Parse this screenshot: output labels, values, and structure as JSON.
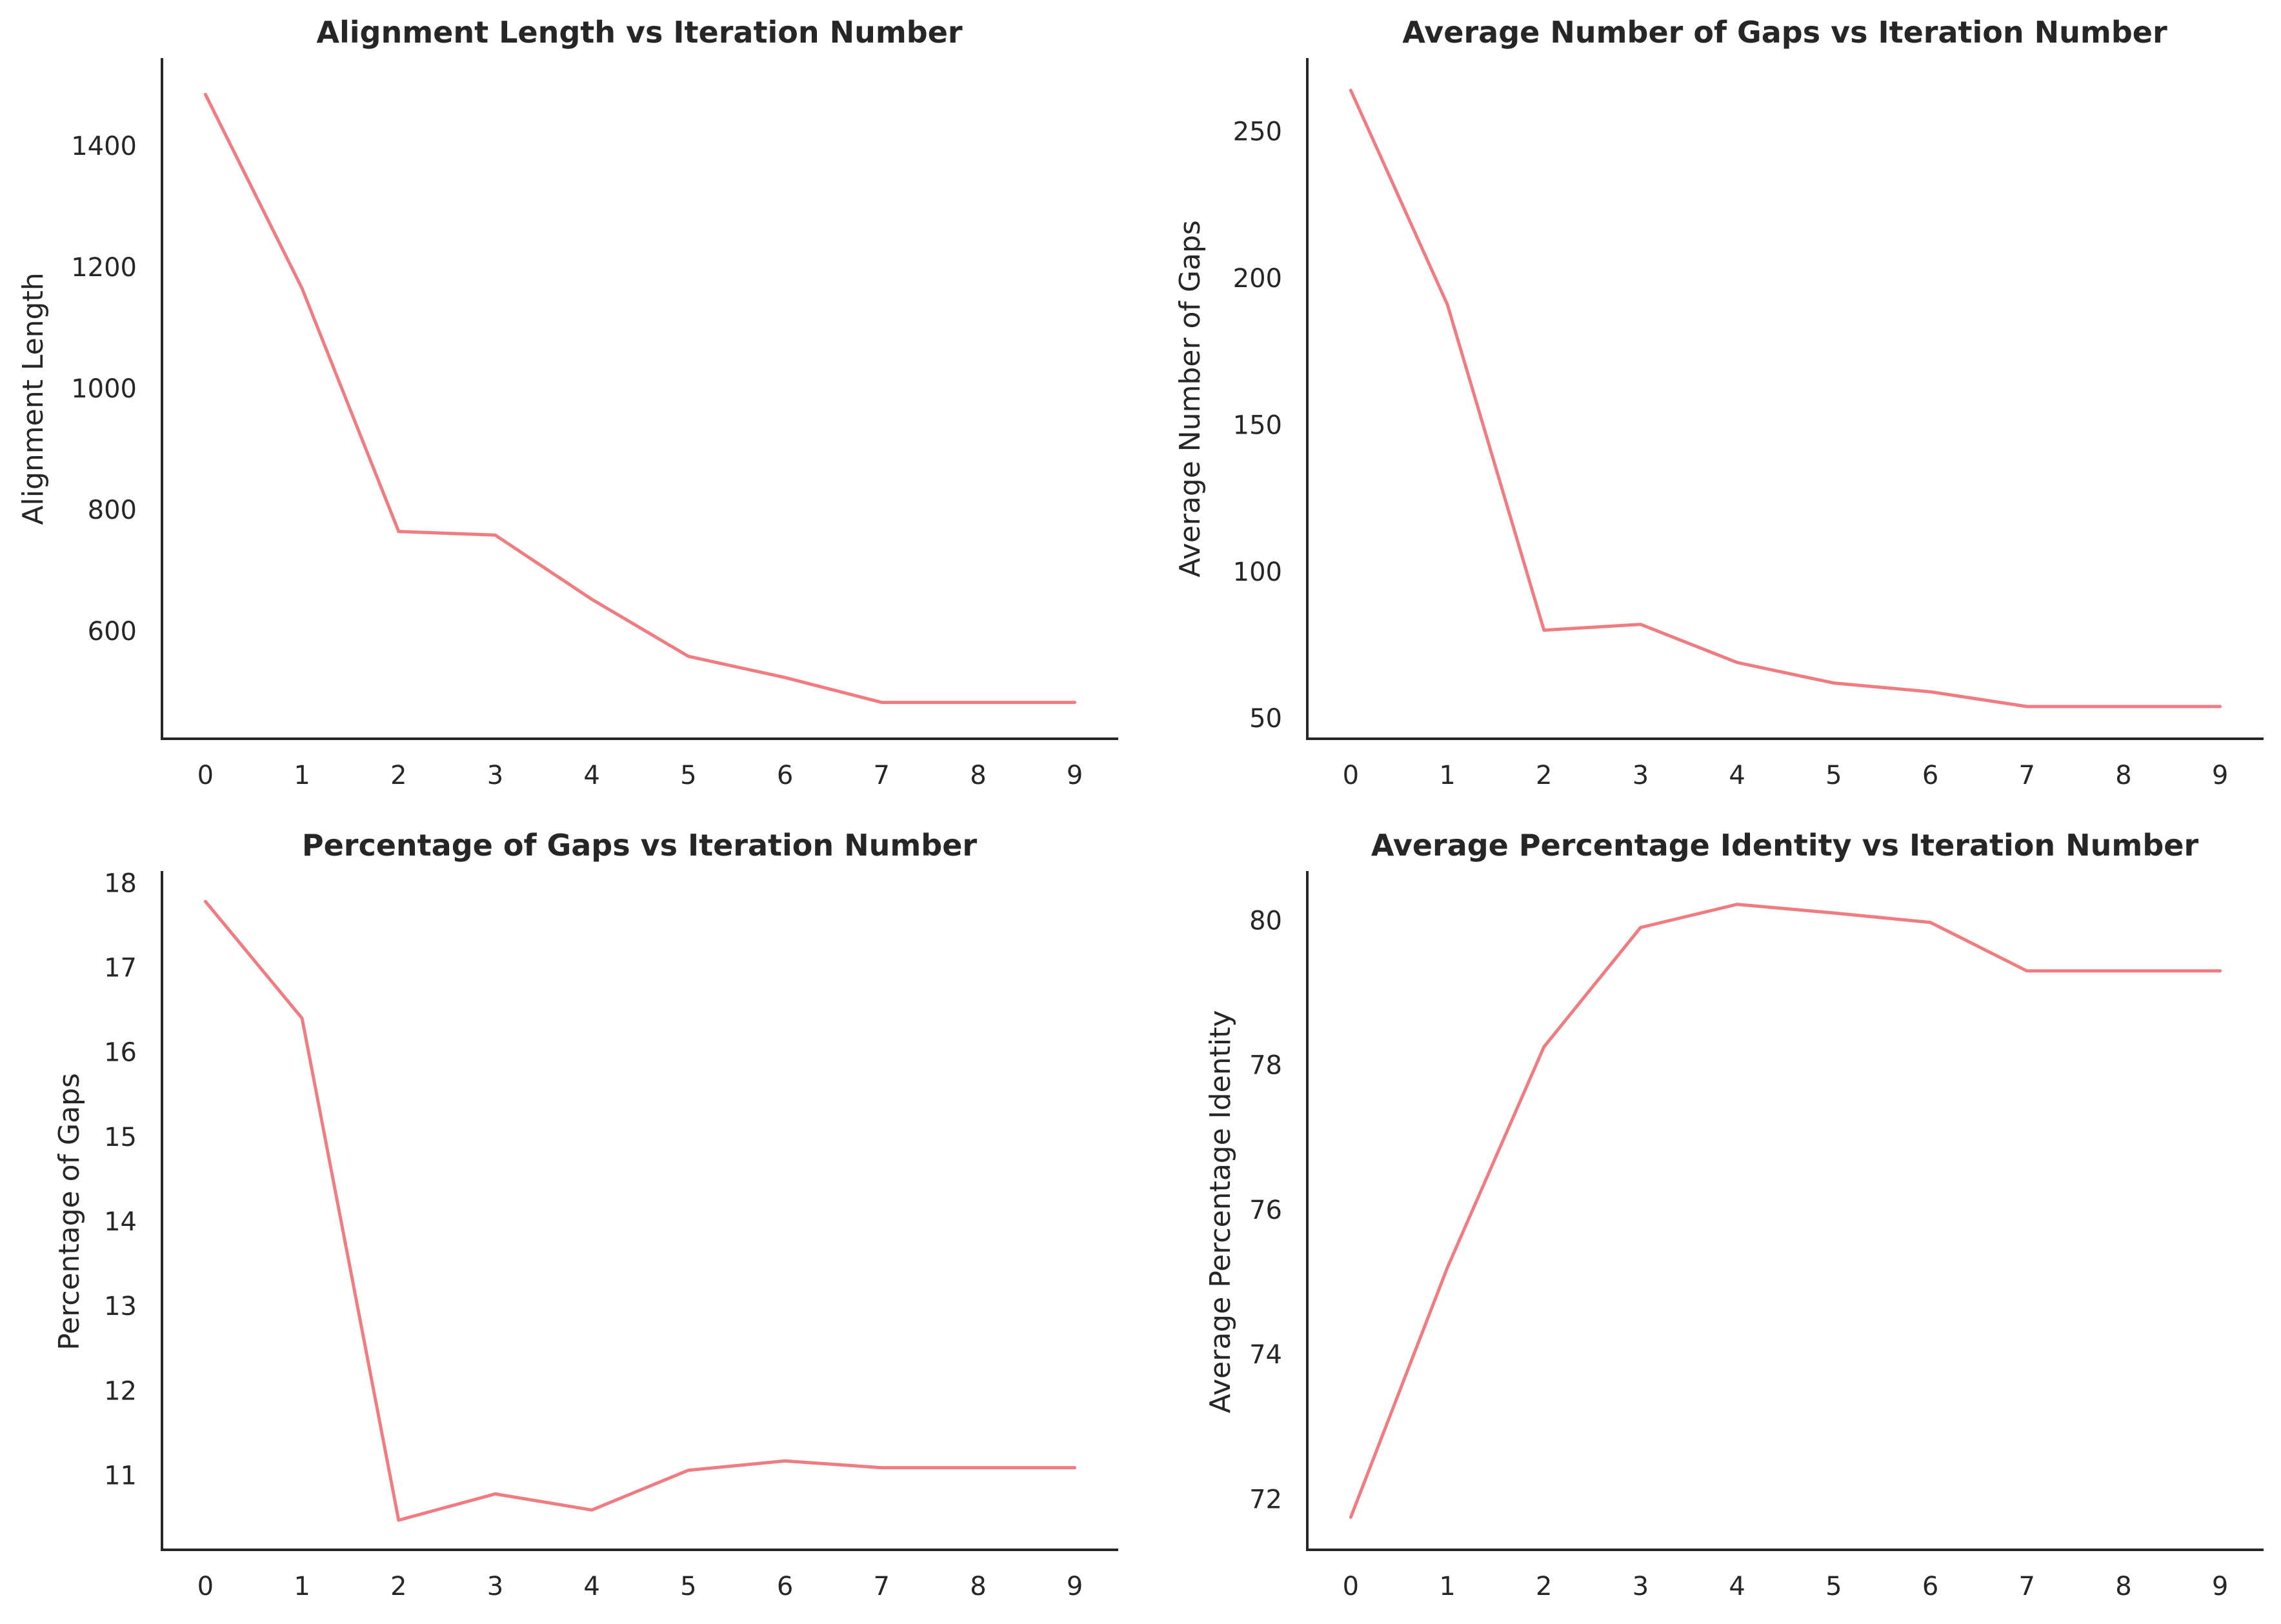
{
  "colors": {
    "line": "#f07b80",
    "axis": "#262626",
    "background": "#ffffff"
  },
  "chart_data": [
    {
      "type": "line",
      "title": "Alignment Length vs Iteration Number",
      "xlabel": "",
      "ylabel": "Alignment Length",
      "x": [
        0,
        1,
        2,
        3,
        4,
        5,
        6,
        7,
        8,
        9
      ],
      "xticks": [
        "0",
        "1",
        "2",
        "3",
        "4",
        "5",
        "6",
        "7",
        "8",
        "9"
      ],
      "values": [
        1485,
        1165,
        764,
        758,
        652,
        558,
        523,
        482,
        482,
        482
      ],
      "yticks": [
        600,
        800,
        1000,
        1200,
        1400
      ],
      "xlim": [
        -0.45,
        9.45
      ],
      "ylim": [
        422,
        1545
      ],
      "grid": false
    },
    {
      "type": "line",
      "title": "Average Number of Gaps vs Iteration Number",
      "xlabel": "",
      "ylabel": "Average Number of Gaps",
      "x": [
        0,
        1,
        2,
        3,
        4,
        5,
        6,
        7,
        8,
        9
      ],
      "xticks": [
        "0",
        "1",
        "2",
        "3",
        "4",
        "5",
        "6",
        "7",
        "8",
        "9"
      ],
      "values": [
        264,
        191,
        80,
        82,
        69,
        62,
        59,
        54,
        54,
        54
      ],
      "yticks": [
        50,
        100,
        150,
        200,
        250
      ],
      "xlim": [
        -0.45,
        9.45
      ],
      "ylim": [
        43,
        275
      ],
      "grid": false
    },
    {
      "type": "line",
      "title": "Percentage of Gaps vs Iteration Number",
      "xlabel": "",
      "ylabel": "Percentage of Gaps",
      "x": [
        0,
        1,
        2,
        3,
        4,
        5,
        6,
        7,
        8,
        9
      ],
      "xticks": [
        "0",
        "1",
        "2",
        "3",
        "4",
        "5",
        "6",
        "7",
        "8",
        "9"
      ],
      "values": [
        17.78,
        16.4,
        10.47,
        10.78,
        10.59,
        11.06,
        11.17,
        11.09,
        11.09,
        11.09
      ],
      "yticks": [
        11,
        12,
        13,
        14,
        15,
        16,
        17,
        18
      ],
      "xlim": [
        -0.45,
        9.45
      ],
      "ylim": [
        10.12,
        18.14
      ],
      "grid": false
    },
    {
      "type": "line",
      "title": "Average Percentage Identity vs Iteration Number",
      "xlabel": "",
      "ylabel": "Average Percentage Identity",
      "x": [
        0,
        1,
        2,
        3,
        4,
        5,
        6,
        7,
        8,
        9
      ],
      "xticks": [
        "0",
        "1",
        "2",
        "3",
        "4",
        "5",
        "6",
        "7",
        "8",
        "9"
      ],
      "values": [
        71.75,
        75.2,
        78.25,
        79.9,
        80.22,
        80.1,
        79.97,
        79.3,
        79.3,
        79.3
      ],
      "yticks": [
        72,
        74,
        76,
        78,
        80
      ],
      "xlim": [
        -0.45,
        9.45
      ],
      "ylim": [
        71.3,
        80.68
      ],
      "grid": false
    }
  ]
}
